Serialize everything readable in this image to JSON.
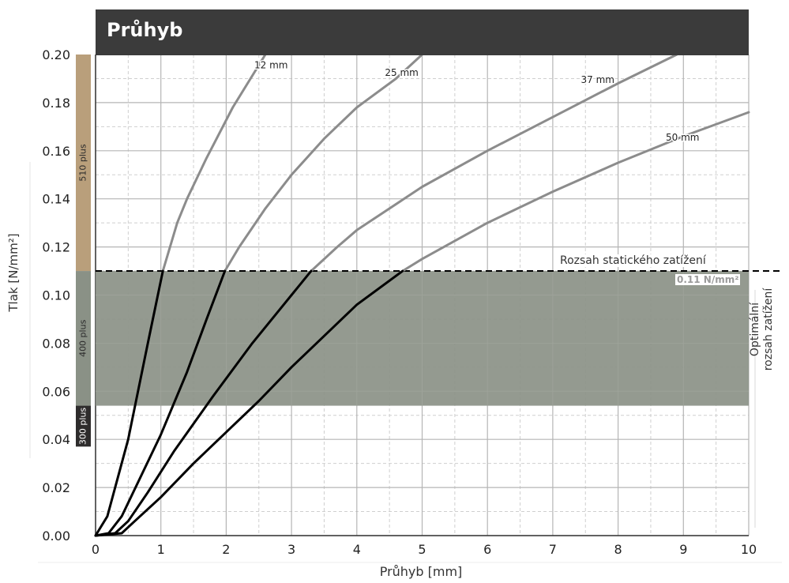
{
  "chart_data": {
    "type": "line",
    "title": "Průhyb",
    "xlabel": "Průhyb [mm]",
    "ylabel": "Tlak [N/mm²]",
    "xlim": [
      0,
      10
    ],
    "ylim": [
      0,
      0.2
    ],
    "x_ticks": [
      "0",
      "1",
      "2",
      "3",
      "4",
      "5",
      "6",
      "7",
      "8",
      "9",
      "10"
    ],
    "y_ticks": [
      "0.00",
      "0.02",
      "0.04",
      "0.06",
      "0.08",
      "0.10",
      "0.12",
      "0.14",
      "0.16",
      "0.18",
      "0.20"
    ],
    "grid": true,
    "series": [
      {
        "name": "12 mm",
        "points": [
          [
            0,
            0
          ],
          [
            0.18,
            0.008
          ],
          [
            0.5,
            0.04
          ],
          [
            0.8,
            0.08
          ],
          [
            1.03,
            0.11
          ],
          [
            1.25,
            0.13
          ],
          [
            1.4,
            0.14
          ],
          [
            1.7,
            0.157
          ],
          [
            2.1,
            0.178
          ],
          [
            2.6,
            0.2
          ]
        ]
      },
      {
        "name": "25 mm",
        "points": [
          [
            0,
            0
          ],
          [
            0.2,
            0.001
          ],
          [
            0.4,
            0.008
          ],
          [
            0.7,
            0.025
          ],
          [
            1.0,
            0.042
          ],
          [
            1.4,
            0.068
          ],
          [
            1.7,
            0.09
          ],
          [
            1.98,
            0.11
          ],
          [
            2.2,
            0.12
          ],
          [
            2.6,
            0.136
          ],
          [
            3.0,
            0.15
          ],
          [
            3.5,
            0.165
          ],
          [
            4.0,
            0.178
          ],
          [
            4.6,
            0.19
          ],
          [
            5.0,
            0.2
          ]
        ]
      },
      {
        "name": "37 mm",
        "points": [
          [
            0,
            0
          ],
          [
            0.3,
            0.001
          ],
          [
            0.5,
            0.006
          ],
          [
            0.8,
            0.018
          ],
          [
            1.2,
            0.035
          ],
          [
            1.8,
            0.058
          ],
          [
            2.4,
            0.08
          ],
          [
            3.0,
            0.1
          ],
          [
            3.3,
            0.11
          ],
          [
            3.7,
            0.12
          ],
          [
            4.0,
            0.127
          ],
          [
            5.0,
            0.145
          ],
          [
            6.0,
            0.16
          ],
          [
            7.0,
            0.174
          ],
          [
            8.0,
            0.188
          ],
          [
            8.9,
            0.2
          ]
        ]
      },
      {
        "name": "50 mm",
        "points": [
          [
            0,
            0
          ],
          [
            0.4,
            0.001
          ],
          [
            0.6,
            0.006
          ],
          [
            1.0,
            0.016
          ],
          [
            1.5,
            0.03
          ],
          [
            2.0,
            0.043
          ],
          [
            2.5,
            0.056
          ],
          [
            3.0,
            0.07
          ],
          [
            3.5,
            0.083
          ],
          [
            4.0,
            0.096
          ],
          [
            4.7,
            0.11
          ],
          [
            5.0,
            0.115
          ],
          [
            6.0,
            0.13
          ],
          [
            7.0,
            0.143
          ],
          [
            8.0,
            0.155
          ],
          [
            9.0,
            0.166
          ],
          [
            10.0,
            0.176
          ]
        ]
      }
    ],
    "series_styles": {
      "above_limit_color": "#8c8c8c",
      "below_limit_color": "#000000"
    },
    "annotations": {
      "static_limit_label": "Rozsah statického zatížení",
      "static_limit_value_label": "0.11 N/mm²",
      "static_limit_y": 0.11,
      "optimal_band": [
        0.054,
        0.11
      ],
      "optimal_label": "Optimální rozsah zatížení",
      "optimal_label_lines": [
        "Optimální",
        "rozsah zatížení"
      ]
    },
    "ranges": [
      {
        "label": "510 plus",
        "from": 0.11,
        "to": 0.2,
        "color": "#b99f7b"
      },
      {
        "label": "400 plus",
        "from": 0.054,
        "to": 0.11,
        "color": "#8a9186"
      },
      {
        "label": "300 plus",
        "from": 0.037,
        "to": 0.054,
        "color": "#2e2c2c"
      }
    ],
    "colors": {
      "title_bar": "#3b3b3b",
      "optimal_band": "#8c9288",
      "grid_major": "#b5b5b5",
      "grid_minor": "#cfcfcf"
    }
  }
}
